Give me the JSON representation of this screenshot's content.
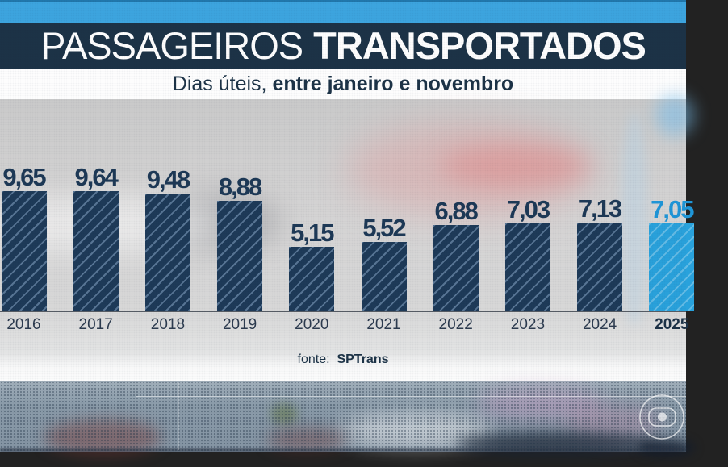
{
  "header": {
    "title": {
      "regular": "PASSAGEIROS",
      "bold": "TRANSPORTADOS"
    },
    "subtitle": {
      "regular": "Dias úteis,",
      "bold": "entre janeiro e novembro"
    }
  },
  "chart_data": {
    "type": "bar",
    "title": "PASSAGEIROS TRANSPORTADOS",
    "subtitle": "Dias úteis, entre janeiro e novembro",
    "categories": [
      "2016",
      "2017",
      "2018",
      "2019",
      "2020",
      "2021",
      "2022",
      "2023",
      "2024",
      "2025"
    ],
    "values": [
      9.65,
      9.64,
      9.48,
      8.88,
      5.15,
      5.52,
      6.88,
      7.03,
      7.13,
      7.05
    ],
    "value_labels": [
      "9,65",
      "9,64",
      "9,48",
      "8,88",
      "5,15",
      "5,52",
      "6,88",
      "7,03",
      "7,13",
      "7,05"
    ],
    "highlight_index": 9,
    "xlabel": "",
    "ylabel": "",
    "ylim": [
      0,
      10
    ],
    "grid": false,
    "legend": "none",
    "colors": {
      "bar": "#1e3a58",
      "bar_hatch": "#49678c",
      "highlight_bar": "#29a2dc",
      "value_label": "#1d3956",
      "highlight_value_label": "#1f96d8",
      "axis_label": "#2c3b4f",
      "axis_line": "#565c64",
      "header_band": "#1c3347",
      "top_strip": "#3da5e0"
    }
  },
  "footer": {
    "source_prefix": "fonte:",
    "source_name": "SPTrans"
  },
  "watermark": {
    "name": "globo-logo"
  }
}
